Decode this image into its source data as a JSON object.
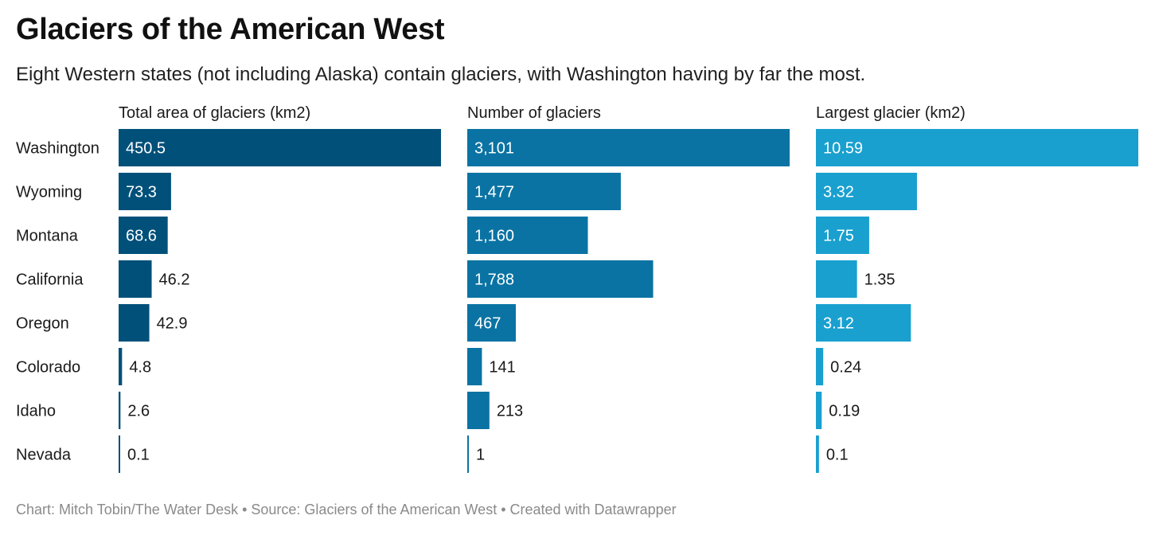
{
  "header": {
    "title": "Glaciers of the American West",
    "subtitle": "Eight Western states (not including Alaska) contain glaciers, with Washington having by far the most."
  },
  "footer": {
    "credit": "Chart: Mitch Tobin/The Water Desk • Source: Glaciers of the American West • Created with Datawrapper"
  },
  "colors": {
    "total_area": "#00507a",
    "number": "#0a73a3",
    "largest": "#19a0cf",
    "label_inside": "#ffffff",
    "label_outside": "#1a1a1a"
  },
  "chart_data": [
    {
      "type": "bar",
      "title": "Total area of glaciers (km2)",
      "categories": [
        "Washington",
        "Wyoming",
        "Montana",
        "California",
        "Oregon",
        "Colorado",
        "Idaho",
        "Nevada"
      ],
      "values": [
        450.5,
        73.3,
        68.6,
        46.2,
        42.9,
        4.8,
        2.6,
        0.1
      ],
      "labels": [
        "450.5",
        "73.3",
        "68.6",
        "46.2",
        "42.9",
        "4.8",
        "2.6",
        "0.1"
      ]
    },
    {
      "type": "bar",
      "title": "Number of glaciers",
      "categories": [
        "Washington",
        "Wyoming",
        "Montana",
        "California",
        "Oregon",
        "Colorado",
        "Idaho",
        "Nevada"
      ],
      "values": [
        3101,
        1477,
        1160,
        1788,
        467,
        141,
        213,
        1
      ],
      "labels": [
        "3,101",
        "1,477",
        "1,160",
        "1,788",
        "467",
        "141",
        "213",
        "1"
      ]
    },
    {
      "type": "bar",
      "title": "Largest glacier (km2)",
      "categories": [
        "Washington",
        "Wyoming",
        "Montana",
        "California",
        "Oregon",
        "Colorado",
        "Idaho",
        "Nevada"
      ],
      "values": [
        10.59,
        3.32,
        1.75,
        1.35,
        3.12,
        0.24,
        0.19,
        0.1
      ],
      "labels": [
        "10.59",
        "3.32",
        "1.75",
        "1.35",
        "3.12",
        "0.24",
        "0.19",
        "0.1"
      ]
    }
  ]
}
